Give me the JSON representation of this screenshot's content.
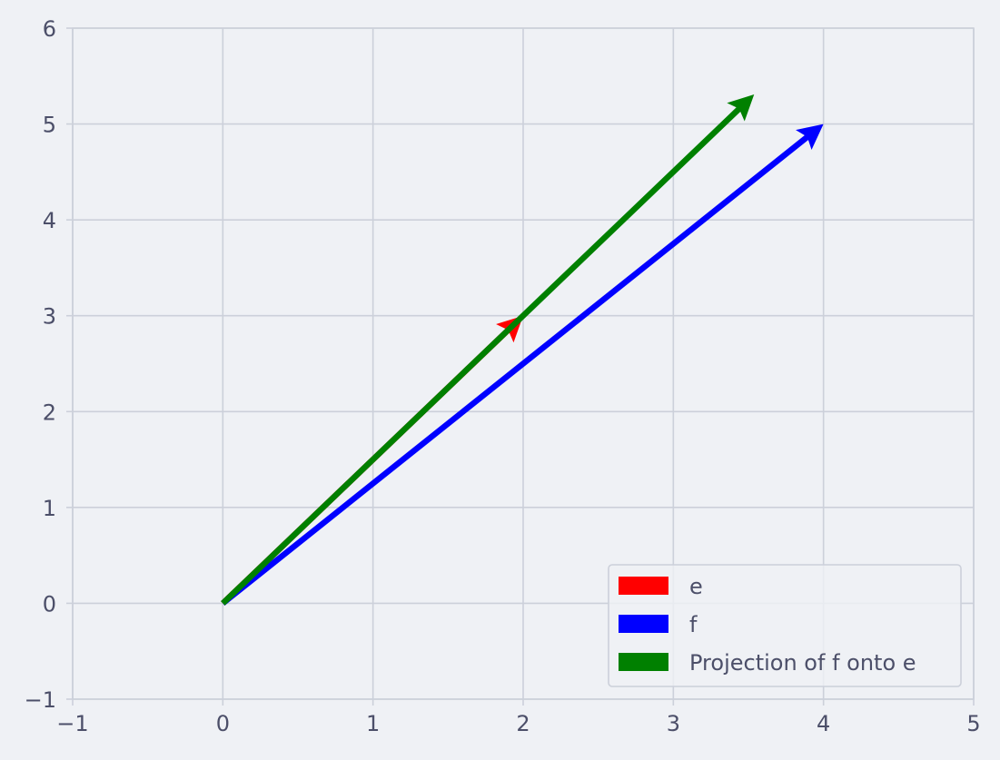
{
  "chart_data": {
    "type": "vector",
    "title": "",
    "xlabel": "",
    "ylabel": "",
    "xlim": [
      -1,
      5
    ],
    "ylim": [
      -1,
      6
    ],
    "xticks": [
      -1,
      0,
      1,
      2,
      3,
      4,
      5
    ],
    "yticks": [
      -1,
      0,
      1,
      2,
      3,
      4,
      5,
      6
    ],
    "xtick_labels": [
      "−1",
      "0",
      "1",
      "2",
      "3",
      "4",
      "5"
    ],
    "ytick_labels": [
      "−1",
      "0",
      "1",
      "2",
      "3",
      "4",
      "5",
      "6"
    ],
    "grid": true,
    "legend_position": "lower-right",
    "series": [
      {
        "name": "e",
        "color": "#ff0000",
        "origin": [
          0,
          0
        ],
        "vector": [
          2,
          3
        ]
      },
      {
        "name": "f",
        "color": "#0000ff",
        "origin": [
          0,
          0
        ],
        "vector": [
          4,
          5
        ]
      },
      {
        "name": "Projection of f onto e",
        "color": "#008000",
        "origin": [
          0,
          0
        ],
        "vector": [
          3.538,
          5.308
        ]
      }
    ]
  },
  "colors": {
    "background": "#eff1f5",
    "grid": "#ccd0da",
    "text": "#4c4f69"
  }
}
